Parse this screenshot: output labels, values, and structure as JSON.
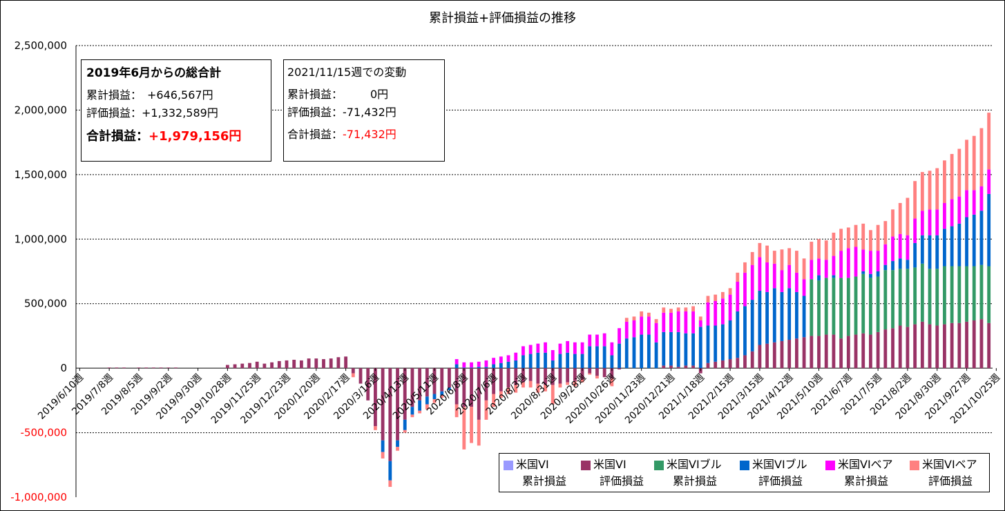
{
  "chart_data": {
    "type": "bar",
    "stacked": true,
    "title": "累計損益+評価損益の推移",
    "ylim": [
      -1000000,
      2500000
    ],
    "y_ticks": [
      -1000000,
      -500000,
      0,
      500000,
      1000000,
      1500000,
      2000000,
      2500000
    ],
    "y_tick_labels": [
      "-1,000,000",
      "-500,000",
      "0",
      "500,000",
      "1,000,000",
      "1,500,000",
      "2,000,000",
      "2,500,000"
    ],
    "negative_tick_color": "#ff0000",
    "gridlines": "dotted, every 500,000",
    "x_tick_labels": [
      "2019/6/10週",
      "2019/7/8週",
      "2019/8/5週",
      "2019/9/2週",
      "2019/9/30週",
      "2019/10/28週",
      "2019/11/25週",
      "2019/12/23週",
      "2020/1/20週",
      "2020/2/17週",
      "2020/3/16週",
      "2020/4/13週",
      "2020/5/11週",
      "2020/6/8週",
      "2020/7/6週",
      "2020/8/3週",
      "2020/8/31週",
      "2020/9/28週",
      "2020/10/26週",
      "2020/11/23週",
      "2020/12/21週",
      "2021/1/18週",
      "2021/2/15週",
      "2021/3/15週",
      "2021/4/12週",
      "2021/5/10週",
      "2021/6/7週",
      "2021/7/5週",
      "2021/8/2週",
      "2021/8/30週",
      "2021/9/27週",
      "2021/10/25週"
    ],
    "legend_position": "bottom-right",
    "series": [
      {
        "name": "米国VI 累計損益",
        "label_lines": [
          "米国VI",
          "累計損益"
        ],
        "color": "#9999ff"
      },
      {
        "name": "米国VI 評価損益",
        "label_lines": [
          "米国VI",
          "評価損益"
        ],
        "color": "#993366"
      },
      {
        "name": "米国VIブル 累計損益",
        "label_lines": [
          "米国VIブル",
          "累計損益"
        ],
        "color": "#339966"
      },
      {
        "name": "米国VIブル 評価損益",
        "label_lines": [
          "米国VIブル",
          "評価損益"
        ],
        "color": "#0066cc"
      },
      {
        "name": "米国VIベア 累計損益",
        "label_lines": [
          "米国VIベア",
          "累計損益"
        ],
        "color": "#ff00ff"
      },
      {
        "name": "米国VIベア 評価損益",
        "label_lines": [
          "米国VIベア",
          "評価損益"
        ],
        "color": "#ff8080"
      }
    ],
    "weeks_per_tick": 4,
    "bar_values": [
      [
        0,
        0,
        0,
        0,
        0,
        0
      ],
      [
        0,
        0,
        0,
        0,
        0,
        0
      ],
      [
        0,
        0,
        0,
        0,
        0,
        0
      ],
      [
        0,
        0,
        0,
        0,
        0,
        0
      ],
      [
        0,
        5000,
        0,
        0,
        0,
        0
      ],
      [
        0,
        5000,
        0,
        0,
        0,
        0
      ],
      [
        0,
        5000,
        0,
        0,
        0,
        0
      ],
      [
        0,
        0,
        0,
        0,
        0,
        0
      ],
      [
        0,
        5000,
        0,
        0,
        0,
        0
      ],
      [
        0,
        5000,
        0,
        0,
        0,
        0
      ],
      [
        0,
        5000,
        0,
        0,
        0,
        0
      ],
      [
        0,
        5000,
        0,
        0,
        0,
        0
      ],
      [
        0,
        5000,
        0,
        0,
        0,
        0
      ],
      [
        0,
        5000,
        0,
        0,
        0,
        0
      ],
      [
        0,
        0,
        0,
        0,
        0,
        0
      ],
      [
        0,
        0,
        0,
        0,
        0,
        0
      ],
      [
        0,
        0,
        0,
        0,
        0,
        0
      ],
      [
        0,
        0,
        0,
        0,
        0,
        0
      ],
      [
        0,
        0,
        0,
        0,
        0,
        0
      ],
      [
        0,
        0,
        0,
        0,
        0,
        0
      ],
      [
        0,
        25000,
        0,
        0,
        0,
        0
      ],
      [
        0,
        30000,
        0,
        0,
        0,
        0
      ],
      [
        0,
        35000,
        0,
        0,
        0,
        0
      ],
      [
        0,
        40000,
        0,
        0,
        0,
        0
      ],
      [
        0,
        50000,
        0,
        0,
        0,
        0
      ],
      [
        0,
        35000,
        0,
        0,
        0,
        0
      ],
      [
        0,
        45000,
        0,
        0,
        0,
        0
      ],
      [
        0,
        55000,
        0,
        0,
        0,
        0
      ],
      [
        0,
        60000,
        0,
        0,
        0,
        0
      ],
      [
        0,
        65000,
        0,
        0,
        0,
        0
      ],
      [
        0,
        60000,
        0,
        0,
        0,
        0
      ],
      [
        0,
        75000,
        0,
        0,
        0,
        0
      ],
      [
        0,
        75000,
        0,
        0,
        0,
        0
      ],
      [
        0,
        70000,
        0,
        0,
        0,
        0
      ],
      [
        0,
        75000,
        0,
        0,
        0,
        0
      ],
      [
        0,
        85000,
        0,
        0,
        0,
        0
      ],
      [
        0,
        90000,
        0,
        0,
        0,
        0
      ],
      [
        0,
        -40000,
        0,
        0,
        0,
        -30000
      ],
      [
        0,
        -120000,
        0,
        0,
        0,
        0
      ],
      [
        0,
        -250000,
        0,
        0,
        0,
        0
      ],
      [
        0,
        -450000,
        0,
        0,
        0,
        -30000
      ],
      [
        0,
        -560000,
        0,
        -90000,
        0,
        -50000
      ],
      [
        0,
        -720000,
        0,
        -150000,
        0,
        -50000
      ],
      [
        0,
        -560000,
        0,
        -50000,
        0,
        -30000
      ],
      [
        0,
        -400000,
        0,
        -80000,
        0,
        -20000
      ],
      [
        0,
        -300000,
        0,
        -60000,
        0,
        -20000
      ],
      [
        0,
        -250000,
        0,
        -80000,
        0,
        -20000
      ],
      [
        0,
        -220000,
        0,
        -60000,
        0,
        -40000
      ],
      [
        0,
        -200000,
        0,
        -40000,
        0,
        -30000
      ],
      [
        0,
        -180000,
        0,
        -30000,
        0,
        -20000
      ],
      [
        0,
        -150000,
        0,
        -20000,
        0,
        0
      ],
      [
        0,
        -280000,
        0,
        30000,
        40000,
        -100000
      ],
      [
        0,
        -300000,
        0,
        5000,
        40000,
        -330000
      ],
      [
        0,
        -300000,
        0,
        5000,
        40000,
        -280000
      ],
      [
        0,
        -400000,
        0,
        10000,
        40000,
        -200000
      ],
      [
        0,
        -250000,
        0,
        10000,
        50000,
        -150000
      ],
      [
        0,
        -200000,
        0,
        30000,
        50000,
        -100000
      ],
      [
        0,
        -180000,
        0,
        40000,
        50000,
        -50000
      ],
      [
        0,
        -150000,
        0,
        50000,
        50000,
        -50000
      ],
      [
        0,
        -130000,
        0,
        60000,
        60000,
        -60000
      ],
      [
        0,
        -110000,
        0,
        100000,
        70000,
        -40000
      ],
      [
        0,
        -100000,
        0,
        110000,
        70000,
        -50000
      ],
      [
        0,
        -120000,
        0,
        120000,
        70000,
        -70000
      ],
      [
        0,
        -130000,
        0,
        120000,
        80000,
        -50000
      ],
      [
        0,
        -130000,
        0,
        60000,
        80000,
        -150000
      ],
      [
        0,
        -120000,
        0,
        110000,
        80000,
        -30000
      ],
      [
        0,
        -110000,
        0,
        120000,
        90000,
        -20000
      ],
      [
        0,
        -100000,
        0,
        110000,
        90000,
        -40000
      ],
      [
        0,
        -90000,
        0,
        110000,
        90000,
        -20000
      ],
      [
        0,
        -40000,
        0,
        170000,
        90000,
        -10000
      ],
      [
        0,
        -60000,
        0,
        170000,
        90000,
        -20000
      ],
      [
        0,
        -70000,
        0,
        170000,
        100000,
        0
      ],
      [
        0,
        -80000,
        0,
        100000,
        100000,
        -60000
      ],
      [
        0,
        -10000,
        0,
        190000,
        120000,
        0
      ],
      [
        0,
        0,
        0,
        230000,
        130000,
        30000
      ],
      [
        0,
        0,
        0,
        240000,
        130000,
        30000
      ],
      [
        0,
        0,
        0,
        260000,
        140000,
        40000
      ],
      [
        0,
        0,
        0,
        260000,
        140000,
        30000
      ],
      [
        0,
        0,
        0,
        200000,
        150000,
        30000
      ],
      [
        0,
        20000,
        0,
        260000,
        150000,
        40000
      ],
      [
        0,
        20000,
        0,
        260000,
        150000,
        30000
      ],
      [
        0,
        10000,
        0,
        270000,
        160000,
        30000
      ],
      [
        0,
        20000,
        0,
        250000,
        170000,
        30000
      ],
      [
        0,
        20000,
        0,
        250000,
        170000,
        40000
      ],
      [
        0,
        -40000,
        0,
        320000,
        50000,
        30000
      ],
      [
        0,
        40000,
        0,
        290000,
        180000,
        50000
      ],
      [
        0,
        50000,
        0,
        280000,
        190000,
        50000
      ],
      [
        0,
        60000,
        0,
        280000,
        200000,
        50000
      ],
      [
        0,
        70000,
        0,
        300000,
        200000,
        50000
      ],
      [
        0,
        80000,
        0,
        360000,
        230000,
        70000
      ],
      [
        0,
        100000,
        0,
        380000,
        260000,
        80000
      ],
      [
        0,
        130000,
        0,
        400000,
        270000,
        100000
      ],
      [
        0,
        180000,
        0,
        420000,
        260000,
        110000
      ],
      [
        0,
        190000,
        0,
        400000,
        230000,
        130000
      ],
      [
        0,
        200000,
        0,
        420000,
        190000,
        100000
      ],
      [
        0,
        210000,
        0,
        380000,
        170000,
        160000
      ],
      [
        0,
        220000,
        0,
        400000,
        180000,
        130000
      ],
      [
        0,
        230000,
        0,
        360000,
        150000,
        170000
      ],
      [
        0,
        240000,
        0,
        320000,
        130000,
        160000
      ],
      [
        0,
        250000,
        440000,
        0,
        150000,
        140000
      ],
      [
        0,
        250000,
        430000,
        40000,
        130000,
        150000
      ],
      [
        0,
        260000,
        440000,
        0,
        140000,
        150000
      ],
      [
        0,
        260000,
        440000,
        20000,
        150000,
        180000
      ],
      [
        0,
        230000,
        470000,
        0,
        210000,
        170000
      ],
      [
        0,
        250000,
        450000,
        0,
        230000,
        160000
      ],
      [
        0,
        260000,
        450000,
        0,
        230000,
        170000
      ],
      [
        0,
        270000,
        460000,
        20000,
        170000,
        200000
      ],
      [
        0,
        260000,
        440000,
        30000,
        180000,
        160000
      ],
      [
        0,
        280000,
        430000,
        40000,
        160000,
        200000
      ],
      [
        0,
        300000,
        460000,
        40000,
        160000,
        180000
      ],
      [
        0,
        310000,
        450000,
        70000,
        190000,
        210000
      ],
      [
        0,
        330000,
        440000,
        80000,
        190000,
        240000
      ],
      [
        0,
        320000,
        450000,
        70000,
        190000,
        290000
      ],
      [
        0,
        340000,
        440000,
        190000,
        190000,
        290000
      ],
      [
        0,
        360000,
        450000,
        220000,
        190000,
        300000
      ],
      [
        0,
        340000,
        430000,
        260000,
        200000,
        300000
      ],
      [
        0,
        330000,
        440000,
        260000,
        200000,
        320000
      ],
      [
        0,
        340000,
        450000,
        290000,
        200000,
        330000
      ],
      [
        0,
        350000,
        440000,
        310000,
        210000,
        350000
      ],
      [
        0,
        350000,
        440000,
        330000,
        210000,
        370000
      ],
      [
        0,
        360000,
        430000,
        380000,
        210000,
        390000
      ],
      [
        0,
        370000,
        420000,
        400000,
        190000,
        420000
      ],
      [
        0,
        380000,
        420000,
        420000,
        190000,
        450000
      ],
      [
        0,
        350000,
        440000,
        560000,
        190000,
        440000
      ]
    ]
  },
  "summary": {
    "heading": "2019年6月からの総合計",
    "rows": [
      "累計損益：　+646,567円",
      "評価損益：+1,332,589円"
    ],
    "total_label": "合計損益：",
    "total_value": "+1,979,156円"
  },
  "weekly": {
    "heading": "2021/11/15週での変動",
    "rows": [
      "累計損益：　　　0円",
      "評価損益：-71,432円"
    ],
    "total_label": "合計損益：",
    "total_value": "-71,432円"
  }
}
